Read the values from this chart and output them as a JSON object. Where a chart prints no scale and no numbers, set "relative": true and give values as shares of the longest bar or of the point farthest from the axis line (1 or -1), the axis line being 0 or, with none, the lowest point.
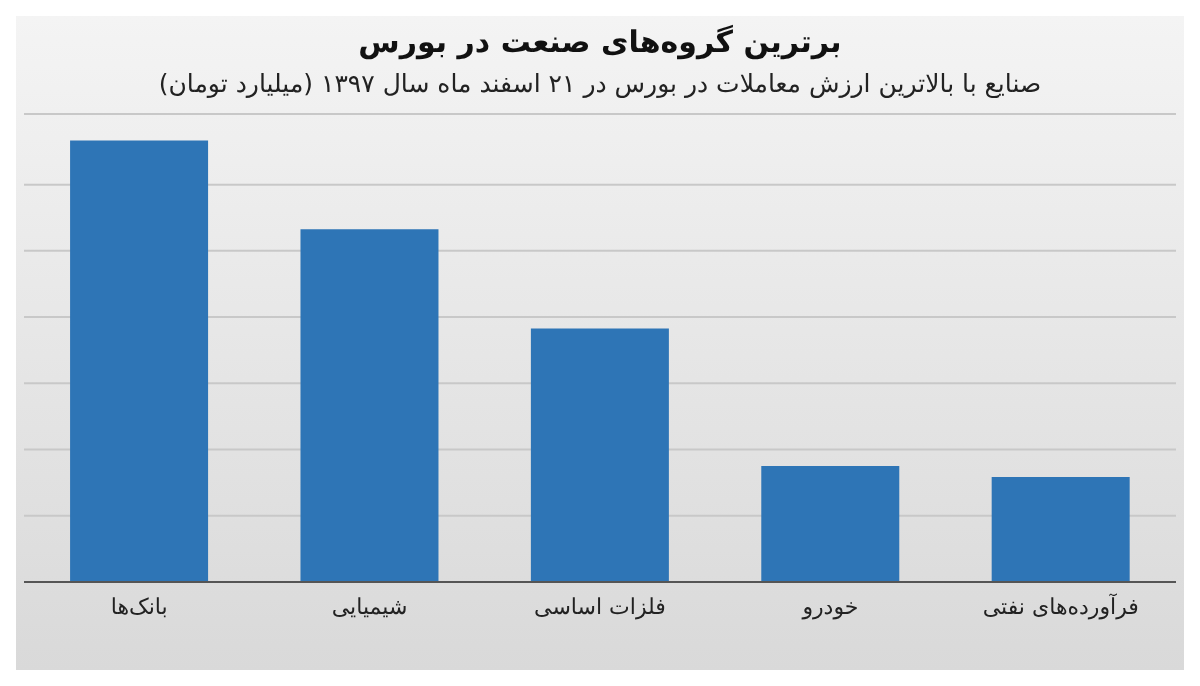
{
  "chart_data": {
    "type": "bar",
    "title": "برترین گروه‌های صنعت در بورس",
    "subtitle": "صنایع با بالاترین ارزش معاملات در بورس در ۲۱ اسفند ماه سال ۱۳۹۷ (میلیارد تومان)",
    "categories": [
      "بانک‌ها",
      "شیمیایی",
      "فلزات اساسی",
      "خودرو",
      "فرآورده‌های نفتی"
    ],
    "values": [
      1,
      0.799,
      0.574,
      0.263,
      0.238
    ],
    "color": "#2e75b6",
    "relative": true,
    "grid": "y"
  }
}
